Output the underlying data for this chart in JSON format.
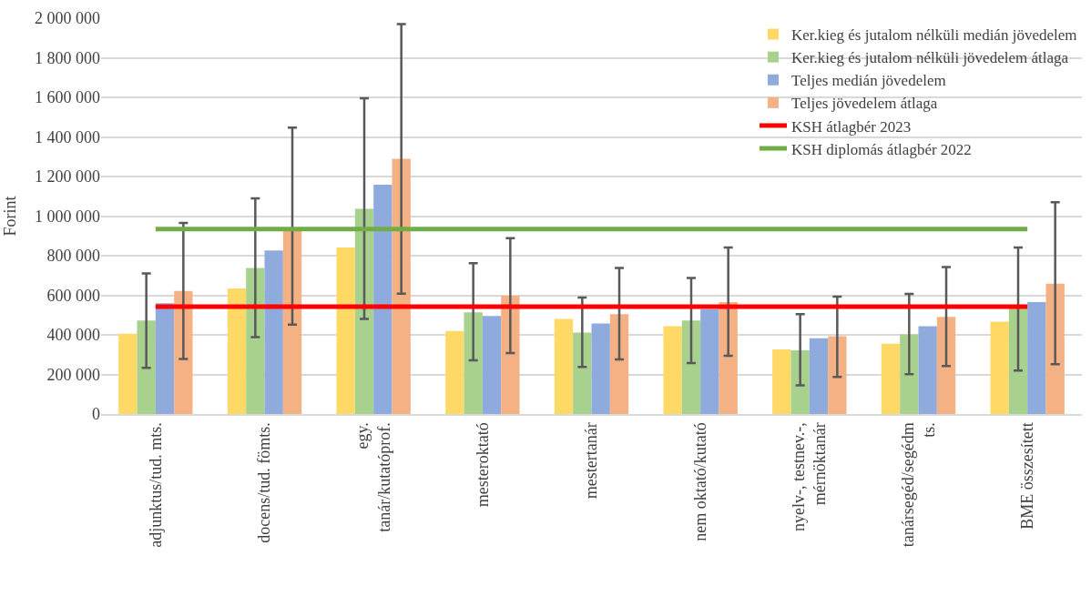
{
  "chart_data": {
    "type": "bar",
    "ylabel": "Forint",
    "categories": [
      "adjunktus/tud. mts.",
      "docens/tud. fömts.",
      "egy.\ntanár/kutatóprof.",
      "mesteroktató",
      "mestertanár",
      "nem oktató/kutató",
      "nyelv-, testnev.-,\nmérnöktanár",
      "tanársegéd/segédm\nts.",
      "BME összesített"
    ],
    "series": [
      {
        "name": "Ker.kieg és jutalom nélküli medián jövedelem",
        "color": "#ffd966",
        "values": [
          406000,
          635000,
          841000,
          420000,
          481000,
          444000,
          327000,
          355000,
          467000
        ]
      },
      {
        "name": "Ker.kieg és jutalom nélküli jövedelem átlaga",
        "color": "#a9d18e",
        "values": [
          472000,
          738000,
          1037000,
          514000,
          411000,
          472000,
          322000,
          402000,
          537000
        ],
        "errors": [
          [
            233000,
            710000
          ],
          [
            388000,
            1090000
          ],
          [
            480000,
            1595000
          ],
          [
            271000,
            762000
          ],
          [
            238000,
            589000
          ],
          [
            257000,
            687000
          ],
          [
            145000,
            505000
          ],
          [
            201000,
            607000
          ],
          [
            220000,
            841000
          ]
        ]
      },
      {
        "name": "Teljes medián jövedelem",
        "color": "#8faadc",
        "values": [
          560000,
          827000,
          1159000,
          495000,
          458000,
          530000,
          383000,
          444000,
          565000
        ]
      },
      {
        "name": "Teljes jövedelem átlaga",
        "color": "#f4b183",
        "values": [
          622000,
          925000,
          1290000,
          598000,
          505000,
          565000,
          393000,
          491000,
          659000
        ],
        "errors": [
          [
            278000,
            965000
          ],
          [
            452000,
            1447000
          ],
          [
            608000,
            1970000
          ],
          [
            308000,
            888000
          ],
          [
            276000,
            738000
          ],
          [
            294000,
            841000
          ],
          [
            187000,
            593000
          ],
          [
            243000,
            743000
          ],
          [
            252000,
            1070000
          ]
        ]
      },
      {
        "name": "KSH átlagbér 2023",
        "type": "line",
        "color": "#ff0000",
        "values": [
          542000,
          542000,
          542000,
          542000,
          542000,
          542000,
          542000,
          542000,
          542000
        ]
      },
      {
        "name": "KSH diplomás átlagbér 2022",
        "type": "line",
        "color": "#70ad47",
        "values": [
          935000,
          935000,
          935000,
          935000,
          935000,
          935000,
          935000,
          935000,
          935000
        ]
      }
    ],
    "ylim": [
      0,
      2000000
    ],
    "yticks": [
      {
        "value": 0,
        "label": "0"
      },
      {
        "value": 200000,
        "label": "200 000"
      },
      {
        "value": 400000,
        "label": "400 000"
      },
      {
        "value": 600000,
        "label": "600 000"
      },
      {
        "value": 800000,
        "label": "800 000"
      },
      {
        "value": 1000000,
        "label": "1 000 000"
      },
      {
        "value": 1200000,
        "label": "1 200 000"
      },
      {
        "value": 1400000,
        "label": "1 400 000"
      },
      {
        "value": 1600000,
        "label": "1 600 000"
      },
      {
        "value": 1800000,
        "label": "1 800 000"
      },
      {
        "value": 2000000,
        "label": "2 000 000"
      }
    ],
    "grid": "y",
    "legend": "top right",
    "marker": "none",
    "line_style": "solid"
  }
}
